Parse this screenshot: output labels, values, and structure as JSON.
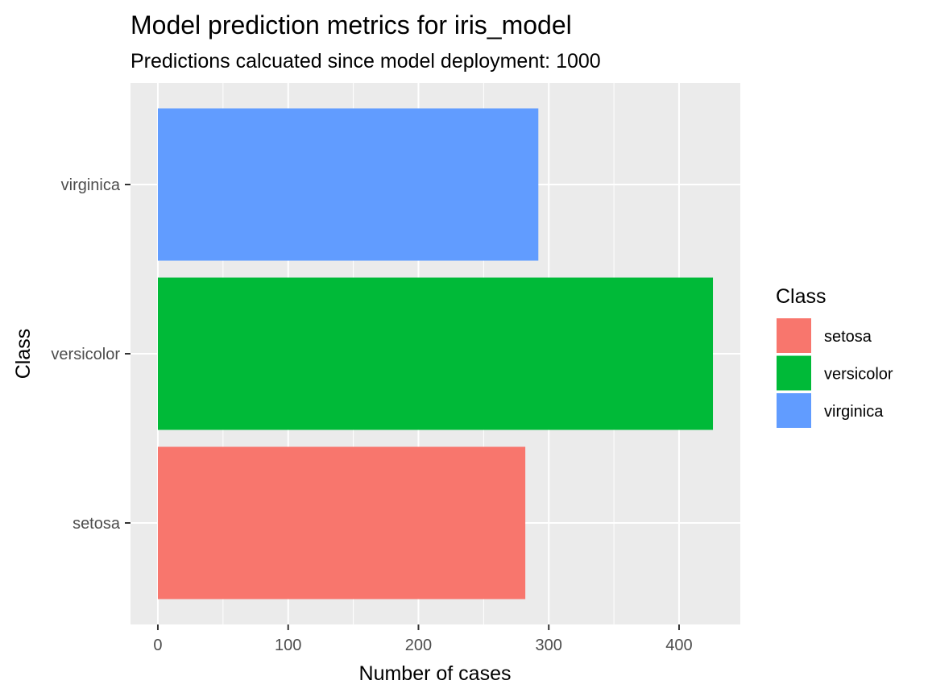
{
  "chart_data": {
    "type": "bar",
    "orientation": "horizontal",
    "title": "Model prediction metrics for iris_model",
    "subtitle": "Predictions calcuated since model deployment: 1000",
    "xlabel": "Number of cases",
    "ylabel": "Class",
    "categories": [
      "setosa",
      "versicolor",
      "virginica"
    ],
    "values": [
      282,
      426,
      292
    ],
    "colors": [
      "#F8766D",
      "#00BA38",
      "#619CFF"
    ],
    "xlim": [
      -21,
      447
    ],
    "xticks": [
      0,
      100,
      200,
      300,
      400
    ],
    "grid": true,
    "panel_background": "#EBEBEB",
    "legend": {
      "title": "Class",
      "position": "right",
      "entries": [
        "setosa",
        "versicolor",
        "virginica"
      ]
    }
  }
}
